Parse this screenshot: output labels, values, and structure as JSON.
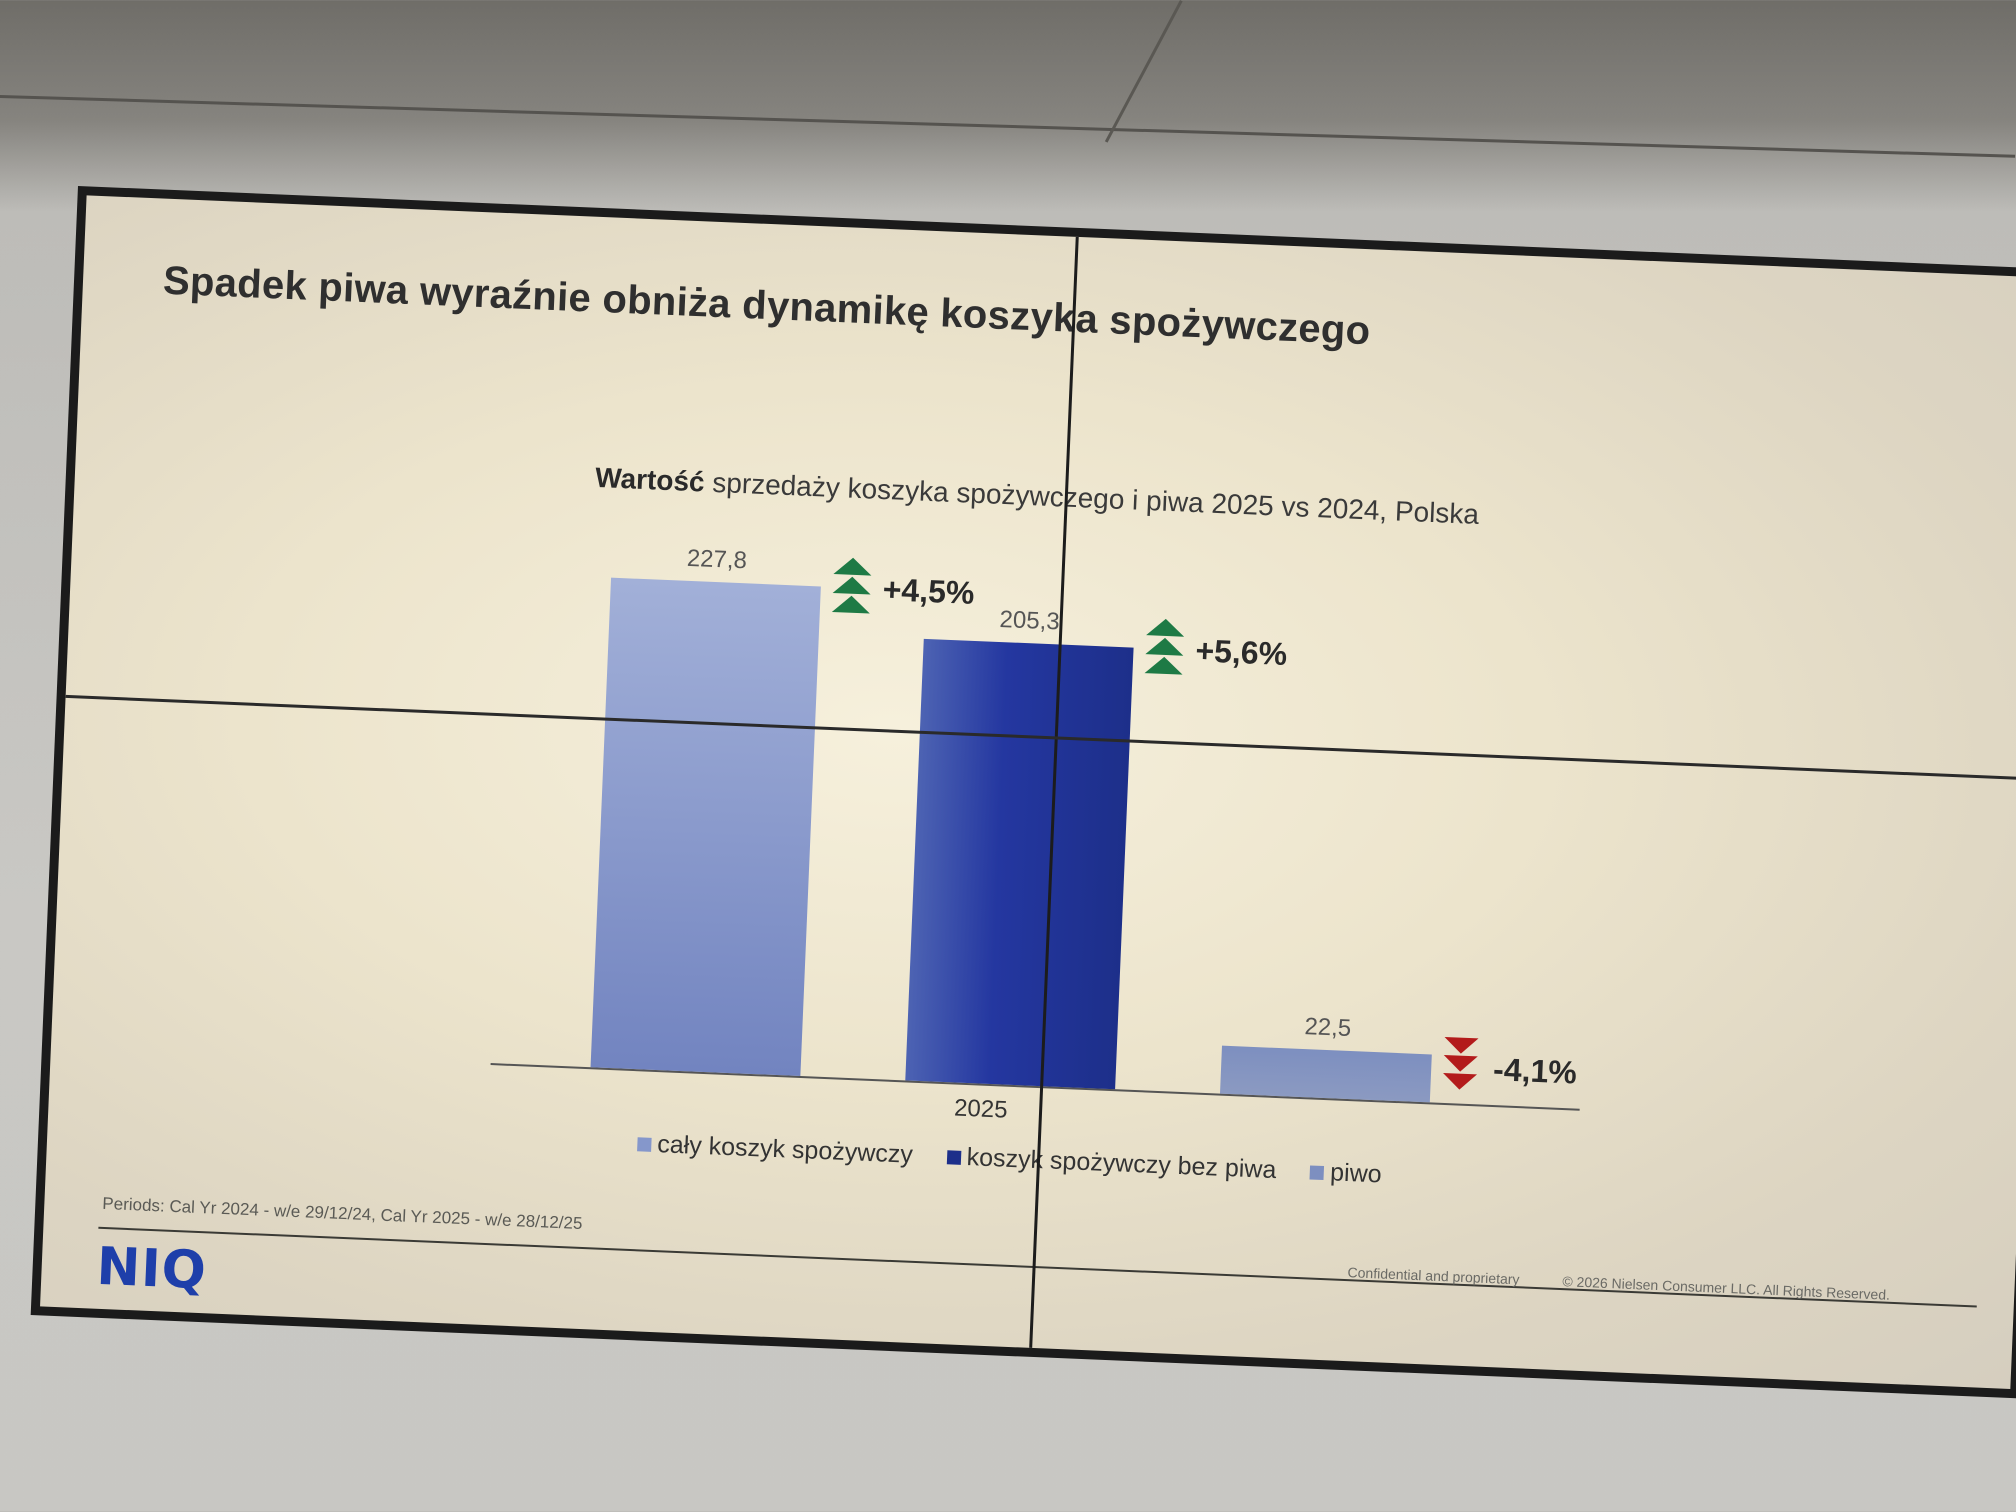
{
  "slide": {
    "title": "Spadek piwa wyraźnie obniża dynamikę koszyka spożywczego",
    "subtitle_bold": "Wartość",
    "subtitle_rest": " sprzedaży koszyka spożywczego i piwa 2025 vs 2024, Polska",
    "periods": "Periods: Cal Yr 2024 - w/e 29/12/24, Cal Yr 2025 - w/e 28/12/25",
    "logo": "NIQ",
    "confidential": "Confidential and proprietary",
    "copyright": "© 2026 Nielsen Consumer LLC. All Rights Reserved."
  },
  "chart_data": {
    "type": "bar",
    "categories": [
      "2025"
    ],
    "series": [
      {
        "name": "cały koszyk spożywczy",
        "value": 227.8,
        "label": "227,8",
        "change": "+4,5%",
        "direction": "up",
        "color": "#8597cb"
      },
      {
        "name": "koszyk spożywczy bez piwa",
        "value": 205.3,
        "label": "205,3",
        "change": "+5,6%",
        "direction": "up",
        "color": "#2b40a0"
      },
      {
        "name": "piwo",
        "value": 22.5,
        "label": "22,5",
        "change": "-4,1%",
        "direction": "down",
        "color": "#7d8fc0"
      }
    ],
    "ylim": [
      0,
      227.8
    ],
    "grid": false,
    "legend_position": "bottom"
  },
  "colors": {
    "up": "#1e7a45",
    "down": "#b31b1b"
  }
}
